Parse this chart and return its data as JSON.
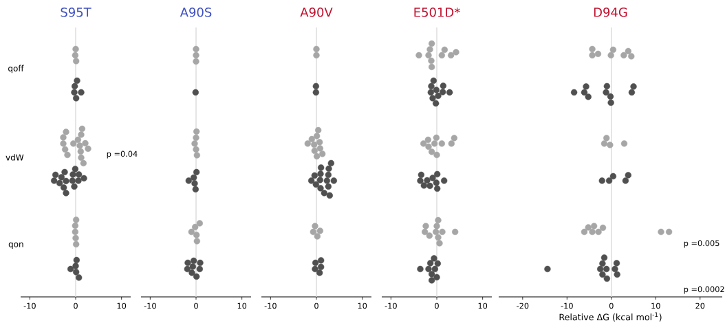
{
  "chart_data": [
    {
      "type": "scatter",
      "title": "S95T",
      "orientation": "horizontal",
      "categories": [
        "qoff",
        "vdW",
        "qon"
      ],
      "xlim": [
        -12,
        12
      ],
      "xticks": [
        -10,
        0,
        10
      ],
      "marker": "circle",
      "grid": false,
      "ref_lines": [
        {
          "axis": "x",
          "value": 0,
          "color": "#d9d9d9"
        }
      ],
      "annotations": [
        "p =0.04"
      ],
      "series": [
        {
          "color": "#a6a6a6",
          "x": [
            "qoff",
            "qoff",
            "qoff",
            "vdW",
            "vdW",
            "vdW",
            "vdW",
            "vdW",
            "vdW",
            "vdW",
            "vdW",
            "vdW",
            "vdW",
            "vdW",
            "vdW",
            "vdW",
            "vdW",
            "vdW",
            "qon",
            "qon",
            "qon",
            "qon",
            "qon"
          ],
          "values": [
            -0.1,
            0.1,
            0.0,
            -2.1,
            -2.7,
            -2.7,
            -2.3,
            -1.8,
            -0.5,
            0.5,
            0.9,
            1.2,
            1.1,
            1.4,
            2.1,
            2.7,
            1.2,
            1.7,
            0.1,
            -0.1,
            -0.1,
            0.0,
            0.1
          ]
        },
        {
          "color": "#505050",
          "x": [
            "qoff",
            "qoff",
            "qoff",
            "qoff",
            "qoff",
            "vdW",
            "vdW",
            "vdW",
            "vdW",
            "vdW",
            "vdW",
            "vdW",
            "vdW",
            "vdW",
            "vdW",
            "vdW",
            "vdW",
            "vdW",
            "vdW",
            "vdW",
            "qon",
            "qon",
            "qon",
            "qon",
            "qon"
          ],
          "values": [
            -0.3,
            0.1,
            0.3,
            -0.2,
            1.2,
            -4.4,
            -2.4,
            -0.6,
            0.7,
            -4.7,
            -3.5,
            -3.1,
            -2.1,
            -0.7,
            0.6,
            1.8,
            -2.6,
            -0.3,
            -2.1,
            -0.1,
            0.7,
            0.0,
            -1.1,
            0.1,
            0.2
          ]
        }
      ]
    },
    {
      "type": "scatter",
      "title": "A90S",
      "orientation": "horizontal",
      "categories": [
        "qoff",
        "vdW",
        "qon"
      ],
      "xlim": [
        -12,
        12
      ],
      "xticks": [
        -10,
        0,
        10
      ],
      "tick_labels": "x",
      "marker": "circle",
      "grid": false,
      "ref_lines": [
        {
          "axis": "x",
          "value": 0,
          "color": "#d9d9d9"
        }
      ],
      "series": [
        {
          "color": "#a6a6a6",
          "x": [
            "qoff",
            "qoff",
            "qoff",
            "vdW",
            "vdW",
            "vdW",
            "vdW",
            "vdW",
            "qon",
            "qon",
            "qon",
            "qon",
            "qon"
          ],
          "values": [
            0.0,
            0.0,
            0.0,
            0.2,
            0.0,
            -0.3,
            0.0,
            0.1,
            0.8,
            -0.2,
            -1.0,
            0.1,
            0.2
          ]
        },
        {
          "color": "#505050",
          "x": [
            "qoff",
            "vdW",
            "vdW",
            "vdW",
            "vdW",
            "vdW",
            "qon",
            "qon",
            "qon",
            "qon",
            "qon",
            "qon",
            "qon",
            "qon"
          ],
          "values": [
            -0.1,
            0.1,
            -0.5,
            -1.6,
            -0.3,
            -0.1,
            -0.5,
            -1.8,
            0.9,
            -1.9,
            -0.7,
            0.8,
            -0.9,
            0.1
          ]
        }
      ]
    },
    {
      "type": "scatter",
      "title": "A90V",
      "orientation": "horizontal",
      "categories": [
        "qoff",
        "vdW",
        "qon"
      ],
      "xlim": [
        -12,
        12
      ],
      "xticks": [
        -10,
        0,
        10
      ],
      "tick_labels": "x",
      "marker": "circle",
      "grid": false,
      "ref_lines": [
        {
          "axis": "x",
          "value": 0,
          "color": "#d9d9d9"
        }
      ],
      "series": [
        {
          "color": "#a6a6a6",
          "x": [
            "qoff",
            "qoff",
            "vdW",
            "vdW",
            "vdW",
            "vdW",
            "vdW",
            "vdW",
            "vdW",
            "vdW",
            "vdW",
            "vdW",
            "qon",
            "qon",
            "qon",
            "qon"
          ],
          "values": [
            0.0,
            0.0,
            0.4,
            0.1,
            -1.0,
            1.3,
            -1.9,
            -0.5,
            0.7,
            -0.4,
            0.8,
            0.1,
            -0.3,
            -0.7,
            0.8,
            0.2
          ]
        },
        {
          "color": "#505050",
          "x": [
            "qoff",
            "qoff",
            "vdW",
            "vdW",
            "vdW",
            "vdW",
            "vdW",
            "vdW",
            "vdW",
            "vdW",
            "vdW",
            "vdW",
            "vdW",
            "vdW",
            "vdW",
            "vdW",
            "vdW",
            "qon",
            "qon",
            "qon",
            "qon",
            "qon"
          ],
          "values": [
            -0.1,
            -0.1,
            3.2,
            1.0,
            2.7,
            -0.4,
            0.9,
            2.6,
            -1.1,
            0.8,
            2.3,
            3.8,
            -0.1,
            2.6,
            0.9,
            1.7,
            2.9,
            1.0,
            -0.2,
            1.0,
            -0.3,
            0.7
          ]
        }
      ]
    },
    {
      "type": "scatter",
      "title": "E501D*",
      "orientation": "horizontal",
      "categories": [
        "qoff",
        "vdW",
        "qon"
      ],
      "xlim": [
        -12,
        12
      ],
      "xticks": [
        -10,
        0,
        10
      ],
      "tick_labels": "x",
      "marker": "circle",
      "grid": false,
      "ref_lines": [
        {
          "axis": "x",
          "value": 0,
          "color": "#d9d9d9"
        }
      ],
      "series": [
        {
          "color": "#a6a6a6",
          "x": [
            "qoff",
            "qoff",
            "qoff",
            "qoff",
            "qoff",
            "qoff",
            "qoff",
            "qoff",
            "qoff",
            "qoff",
            "vdW",
            "vdW",
            "vdW",
            "vdW",
            "vdW",
            "vdW",
            "vdW",
            "vdW",
            "vdW",
            "vdW",
            "qon",
            "qon",
            "qon",
            "qon",
            "qon",
            "qon",
            "qon",
            "qon",
            "qon",
            "qon"
          ],
          "values": [
            -1.5,
            -1.1,
            -3.9,
            -1.8,
            -1.1,
            1.1,
            1.7,
            3.1,
            4.2,
            -1.2,
            -0.1,
            3.8,
            -1.9,
            -2.9,
            -0.5,
            1.1,
            3.2,
            -1.8,
            0.0,
            -1.1,
            0.6,
            -2.4,
            0.0,
            -2.6,
            -0.2,
            1.2,
            4.0,
            -1.6,
            0.3,
            0.3
          ]
        },
        {
          "color": "#505050",
          "x": [
            "qoff",
            "qoff",
            "qoff",
            "qoff",
            "qoff",
            "qoff",
            "qoff",
            "qoff",
            "qoff",
            "qoff",
            "vdW",
            "vdW",
            "vdW",
            "vdW",
            "vdW",
            "vdW",
            "vdW",
            "vdW",
            "vdW",
            "vdW",
            "qon",
            "qon",
            "qon",
            "qon",
            "qon",
            "qon",
            "qon",
            "qon",
            "qon"
          ],
          "values": [
            -1.2,
            -0.2,
            1.4,
            -1.3,
            -0.7,
            0.3,
            1.3,
            2.8,
            -0.9,
            -0.1,
            -3.4,
            0.1,
            -3.6,
            -2.1,
            -0.9,
            1.6,
            -2.8,
            -1.5,
            -0.1,
            0.1,
            -0.6,
            -1.4,
            0.2,
            -3.6,
            -1.8,
            -0.4,
            -1.1,
            0.0,
            -1.1
          ]
        }
      ]
    },
    {
      "type": "scatter",
      "title": "D94G",
      "orientation": "horizontal",
      "categories": [
        "qoff",
        "vdW",
        "qon"
      ],
      "xlim": [
        -25.4,
        25
      ],
      "xticks": [
        -20,
        -10,
        0,
        10,
        20
      ],
      "tick_labels": "x",
      "xlabel": "Relative ΔG (kcal mol$^{-1}$)",
      "marker": "circle",
      "grid": false,
      "ref_lines": [
        {
          "axis": "x",
          "value": 0,
          "color": "#d9d9d9"
        }
      ],
      "annotations": [
        "p =0.005",
        "p =0.0002"
      ],
      "series": [
        {
          "color": "#a6a6a6",
          "x": [
            "qoff",
            "qoff",
            "qoff",
            "qoff",
            "qoff",
            "qoff",
            "qoff",
            "qoff",
            "vdW",
            "vdW",
            "vdW",
            "vdW",
            "qon",
            "qon",
            "qon",
            "qon",
            "qon",
            "qon",
            "qon",
            "qon"
          ],
          "values": [
            -4.3,
            -4.3,
            -3.0,
            -0.1,
            0.4,
            2.8,
            3.8,
            4.5,
            -1.1,
            -1.6,
            -0.3,
            2.9,
            -3.9,
            -5.2,
            -1.9,
            -6.1,
            -4.3,
            -2.9,
            11.2,
            13.0
          ]
        },
        {
          "color": "#505050",
          "x": [
            "qoff",
            "qoff",
            "qoff",
            "qoff",
            "qoff",
            "qoff",
            "qoff",
            "qoff",
            "qoff",
            "qoff",
            "vdW",
            "vdW",
            "vdW",
            "vdW",
            "vdW",
            "qon",
            "qon",
            "qon",
            "qon",
            "qon",
            "qon",
            "qon",
            "qon",
            "qon",
            "qon"
          ],
          "values": [
            -1.0,
            -0.1,
            -8.4,
            -6.1,
            -5.7,
            -5.2,
            -1.2,
            -0.2,
            4.6,
            5.0,
            0.4,
            3.8,
            -2.1,
            -0.5,
            3.2,
            -1.0,
            -2.0,
            1.2,
            -14.4,
            -2.5,
            -1.1,
            0.8,
            -2.0,
            1.3,
            -1.6
          ]
        }
      ]
    }
  ]
}
